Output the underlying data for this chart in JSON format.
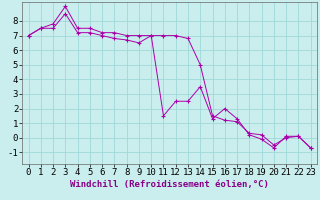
{
  "xlabel": "Windchill (Refroidissement éolien,°C)",
  "background_color": "#caeeed",
  "grid_color": "#a0d8d8",
  "line_color": "#aa00aa",
  "xlim": [
    -0.5,
    23.5
  ],
  "ylim": [
    -1.8,
    9.3
  ],
  "xticks": [
    0,
    1,
    2,
    3,
    4,
    5,
    6,
    7,
    8,
    9,
    10,
    11,
    12,
    13,
    14,
    15,
    16,
    17,
    18,
    19,
    20,
    21,
    22,
    23
  ],
  "yticks": [
    -1,
    0,
    1,
    2,
    3,
    4,
    5,
    6,
    7,
    8
  ],
  "series1_x": [
    0,
    1,
    2,
    3,
    4,
    5,
    6,
    7,
    8,
    9,
    10,
    11,
    12,
    13,
    14,
    15,
    16,
    17,
    18,
    19,
    20,
    21,
    22,
    23
  ],
  "series1_y": [
    7.0,
    7.5,
    7.5,
    8.5,
    7.2,
    7.2,
    7.0,
    6.8,
    6.7,
    6.5,
    7.0,
    1.5,
    2.5,
    2.5,
    3.5,
    1.3,
    2.0,
    1.3,
    0.2,
    -0.1,
    -0.7,
    0.1,
    0.1,
    -0.7
  ],
  "series2_x": [
    0,
    1,
    2,
    3,
    4,
    5,
    6,
    7,
    8,
    9,
    10,
    11,
    12,
    13,
    14,
    15,
    16,
    17,
    18,
    19,
    20,
    21,
    22,
    23
  ],
  "series2_y": [
    7.0,
    7.5,
    7.8,
    9.0,
    7.5,
    7.5,
    7.2,
    7.2,
    7.0,
    7.0,
    7.0,
    7.0,
    7.0,
    6.8,
    5.0,
    1.5,
    1.2,
    1.1,
    0.3,
    0.2,
    -0.5,
    0.0,
    0.1,
    -0.7
  ],
  "tick_fontsize": 6.5,
  "label_fontsize": 6.5
}
